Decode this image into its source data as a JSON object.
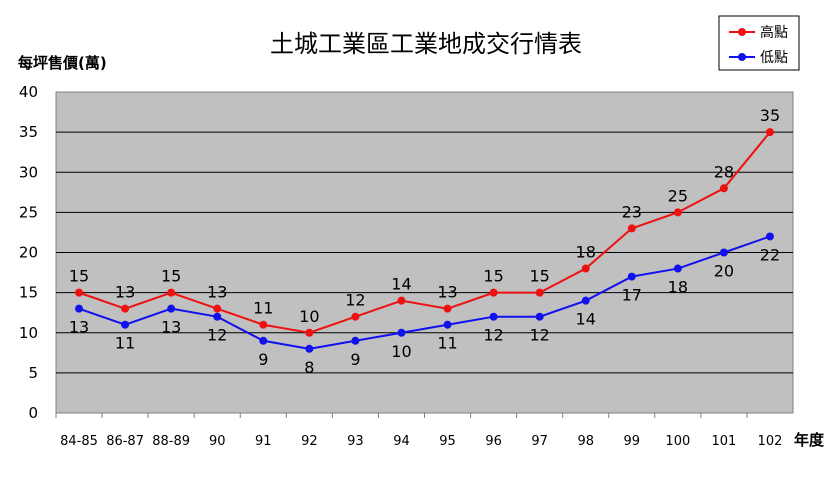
{
  "chart_data": {
    "type": "line",
    "title": "土城工業區工業地成交行情表",
    "ylabel": "每坪售價(萬)",
    "xlabel": "年度",
    "categories": [
      "84-85",
      "86-87",
      "88-89",
      "90",
      "91",
      "92",
      "93",
      "94",
      "95",
      "96",
      "97",
      "98",
      "99",
      "100",
      "101",
      "102"
    ],
    "ylim": [
      0,
      40
    ],
    "yticks": [
      0,
      5,
      10,
      15,
      20,
      25,
      30,
      35,
      40
    ],
    "grid": true,
    "legend_position": "top-right",
    "series": [
      {
        "name": "高點",
        "color": "#ee1111",
        "label_side": "above",
        "values": [
          15,
          13,
          15,
          13,
          11,
          10,
          12,
          14,
          13,
          15,
          15,
          18,
          23,
          25,
          28,
          35
        ]
      },
      {
        "name": "低點",
        "color": "#1111ee",
        "label_side": "below",
        "values": [
          13,
          11,
          13,
          12,
          9,
          8,
          9,
          10,
          11,
          12,
          12,
          14,
          17,
          18,
          20,
          22
        ]
      }
    ],
    "plot_background": "#c0c0c0"
  }
}
